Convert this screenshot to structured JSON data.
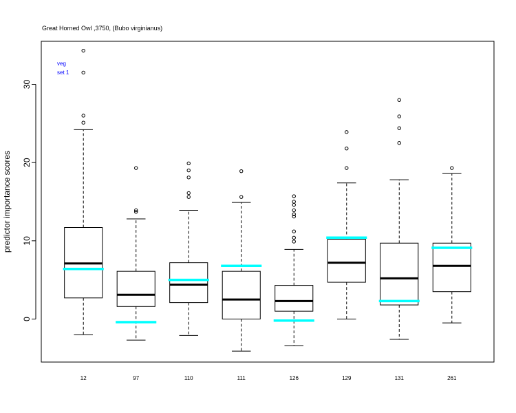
{
  "chart_data": {
    "type": "box",
    "title": "Great Horned Owl ,3750, (Bubo virginianus)",
    "ylabel": "predictor importance scores",
    "xlabel": "",
    "ylim": [
      -5.5,
      35.5
    ],
    "yticks": [
      0,
      10,
      20,
      30
    ],
    "legend": {
      "lines": [
        "veg",
        "set 1"
      ],
      "color": "#0000ff",
      "placement": "top-left"
    },
    "reference_color": "#00ffff",
    "categories": [
      "12",
      "97",
      "110",
      "111",
      "126",
      "129",
      "131",
      "261"
    ],
    "boxes": [
      {
        "label": "12",
        "whisker_low": -2.0,
        "q1": 2.7,
        "median": 7.1,
        "q3": 11.7,
        "whisker_high": 24.2,
        "outliers": [
          25.1,
          26.0,
          31.5,
          34.3
        ],
        "reference": 6.4
      },
      {
        "label": "97",
        "whisker_low": -2.7,
        "q1": 1.6,
        "median": 3.1,
        "q3": 6.1,
        "whisker_high": 12.8,
        "outliers": [
          13.7,
          13.9,
          19.3
        ],
        "reference": -0.4
      },
      {
        "label": "110",
        "whisker_low": -2.1,
        "q1": 2.1,
        "median": 4.4,
        "q3": 7.2,
        "whisker_high": 13.9,
        "outliers": [
          15.6,
          16.1,
          18.1,
          19.0,
          19.9
        ],
        "reference": 5.0
      },
      {
        "label": "111",
        "whisker_low": -4.1,
        "q1": 0.0,
        "median": 2.5,
        "q3": 6.1,
        "whisker_high": 14.9,
        "outliers": [
          15.6,
          18.9
        ],
        "reference": 6.8
      },
      {
        "label": "126",
        "whisker_low": -3.4,
        "q1": 1.0,
        "median": 2.3,
        "q3": 4.3,
        "whisker_high": 8.9,
        "outliers": [
          9.9,
          10.4,
          11.2,
          13.1,
          13.4,
          13.9,
          14.6,
          15.0,
          15.7
        ],
        "reference": -0.2
      },
      {
        "label": "129",
        "whisker_low": 0.0,
        "q1": 4.7,
        "median": 7.2,
        "q3": 10.2,
        "whisker_high": 17.4,
        "outliers": [
          19.3,
          21.8,
          23.9
        ],
        "reference": 10.4
      },
      {
        "label": "131",
        "whisker_low": -2.6,
        "q1": 1.8,
        "median": 5.2,
        "q3": 9.7,
        "whisker_high": 17.8,
        "outliers": [
          22.5,
          24.4,
          25.9,
          28.0
        ],
        "reference": 2.3
      },
      {
        "label": "261",
        "whisker_low": -0.5,
        "q1": 3.5,
        "median": 6.8,
        "q3": 9.7,
        "whisker_high": 18.6,
        "outliers": [
          19.3
        ],
        "reference": 9.1
      }
    ]
  }
}
